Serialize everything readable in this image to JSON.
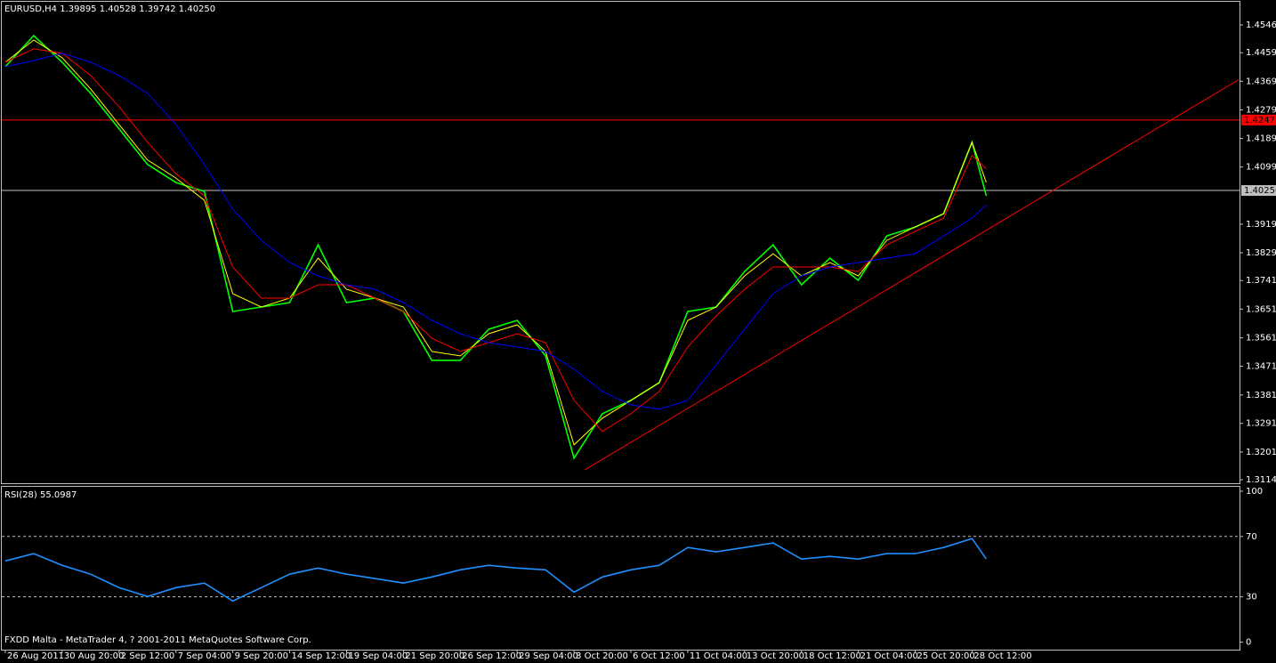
{
  "chart_data": [
    {
      "type": "line",
      "title": "EURUSD,H4  1.39895 1.40528 1.39742 1.40250",
      "x": [
        0,
        8,
        16,
        24,
        32,
        40,
        48,
        56,
        64,
        72,
        80,
        88,
        96,
        104,
        112,
        120,
        128,
        136,
        144,
        152,
        160,
        168,
        176,
        184,
        192,
        200,
        208,
        216,
        224,
        232,
        240,
        248,
        256,
        264,
        272,
        276
      ],
      "series": [
        {
          "color": "#00ff00",
          "values": [
            1.4415,
            1.4513,
            1.4429,
            1.4331,
            1.4219,
            1.4107,
            1.405,
            1.4022,
            1.3644,
            1.3658,
            1.3672,
            1.3854,
            1.3672,
            1.3686,
            1.3644,
            1.349,
            1.349,
            1.3588,
            1.3616,
            1.3504,
            1.3182,
            1.3322,
            1.3364,
            1.342,
            1.3644,
            1.3658,
            1.377,
            1.3854,
            1.3728,
            1.3812,
            1.3742,
            1.3882,
            1.391,
            1.3952,
            1.4177,
            1.4008
          ]
        },
        {
          "color": "#ffff00",
          "values": [
            1.4429,
            1.4499,
            1.4443,
            1.4345,
            1.4233,
            1.4121,
            1.4064,
            1.3994,
            1.37,
            1.3658,
            1.3686,
            1.3812,
            1.3714,
            1.3686,
            1.3658,
            1.3518,
            1.3504,
            1.3574,
            1.3602,
            1.3518,
            1.3224,
            1.3308,
            1.3364,
            1.342,
            1.3616,
            1.3658,
            1.3756,
            1.3826,
            1.3756,
            1.3798,
            1.3756,
            1.3868,
            1.391,
            1.3952,
            1.4177,
            1.405
          ]
        },
        {
          "color": "#ff0000",
          "values": [
            1.4429,
            1.4471,
            1.4457,
            1.4387,
            1.4289,
            1.4177,
            1.4078,
            1.4008,
            1.3784,
            1.3686,
            1.3686,
            1.3728,
            1.3728,
            1.3686,
            1.3644,
            1.356,
            1.3518,
            1.3546,
            1.3574,
            1.3546,
            1.3364,
            1.3266,
            1.3322,
            1.3392,
            1.3532,
            1.363,
            1.3714,
            1.3784,
            1.3784,
            1.3784,
            1.377,
            1.3854,
            1.3896,
            1.3938,
            1.4135,
            1.4093
          ]
        },
        {
          "color": "#0000ff",
          "values": [
            1.4415,
            1.4434,
            1.4457,
            1.4429,
            1.4387,
            1.4331,
            1.4233,
            1.4107,
            1.3966,
            1.3868,
            1.3798,
            1.3756,
            1.3728,
            1.3714,
            1.3672,
            1.3616,
            1.3574,
            1.3546,
            1.3532,
            1.3518,
            1.3462,
            1.3392,
            1.335,
            1.3336,
            1.3364,
            1.3476,
            1.3588,
            1.37,
            1.3756,
            1.3784,
            1.3798,
            1.3812,
            1.3826,
            1.3882,
            1.3938,
            1.398
          ]
        }
      ],
      "xlim": [
        -1,
        347.25
      ],
      "ylim": [
        1.3103,
        1.4625
      ],
      "yticks": [
        1.45465,
        {
          "value": 1.4459,
          "label": "1.44590"
        },
        {
          "value": 1.4369,
          "label": "1.43690"
        },
        {
          "value": 1.4279,
          "label": "1.42790"
        },
        {
          "value": 1.4189,
          "label": "1.41890"
        },
        {
          "value": 1.4099,
          "label": "1.40990"
        },
        {
          "value": 1.3919,
          "label": "1.39190"
        },
        {
          "value": 1.3829,
          "label": "1.38290"
        },
        1.37415,
        1.36515,
        {
          "value": 1.3561,
          "label": "1.35610"
        },
        1.34715,
        {
          "value": 1.3381,
          "label": "1.33810"
        },
        1.32915,
        1.32015,
        {
          "value": 1.3114,
          "label": "1.31140"
        }
      ],
      "hlines": [
        {
          "value": 1.4247,
          "color": "#ff0000",
          "label": "1.4247"
        },
        {
          "value": 1.4025,
          "color": "#c0c0c0",
          "label": "1.40250"
        }
      ],
      "trendline": {
        "color": "#ff0000",
        "x": [
          163,
          347
        ],
        "values": [
          1.3145,
          1.4374
        ]
      }
    },
    {
      "type": "line",
      "title": "RSI(28) 55.0987",
      "x": [
        0,
        8,
        16,
        24,
        32,
        40,
        48,
        56,
        64,
        72,
        80,
        88,
        96,
        104,
        112,
        120,
        128,
        136,
        144,
        152,
        160,
        168,
        176,
        184,
        192,
        200,
        208,
        216,
        224,
        232,
        240,
        248,
        256,
        264,
        272,
        276
      ],
      "series": [
        {
          "color": "#1e90ff",
          "values": [
            53.8,
            58.6,
            50.9,
            45.0,
            36.1,
            30.2,
            36.1,
            39.1,
            27.2,
            36.1,
            45.0,
            49.1,
            45.0,
            42.1,
            39.1,
            43.2,
            47.9,
            50.9,
            49.1,
            47.9,
            33.1,
            43.2,
            47.9,
            50.9,
            62.7,
            59.8,
            62.7,
            65.7,
            55.0,
            56.8,
            55.0,
            58.6,
            58.6,
            62.7,
            68.6,
            55.1
          ]
        }
      ],
      "xlim": [
        -1,
        347.25
      ],
      "ylim": [
        -5,
        103.5
      ],
      "yticks": [
        100,
        70,
        30,
        0
      ],
      "levels": [
        70,
        30
      ],
      "xticks": [
        {
          "value": 0,
          "label": "26 Aug 2011"
        },
        {
          "value": 16,
          "label": "30 Aug 20:00"
        },
        {
          "value": 32,
          "label": "2 Sep 12:00"
        },
        {
          "value": 48,
          "label": "7 Sep 04:00"
        },
        {
          "value": 64,
          "label": "9 Sep 20:00"
        },
        {
          "value": 80,
          "label": "14 Sep 12:00"
        },
        {
          "value": 96,
          "label": "19 Sep 04:00"
        },
        {
          "value": 112,
          "label": "21 Sep 20:00"
        },
        {
          "value": 128,
          "label": "26 Sep 12:00"
        },
        {
          "value": 144,
          "label": "29 Sep 04:00"
        },
        {
          "value": 160,
          "label": "3 Oct 20:00"
        },
        {
          "value": 176,
          "label": "6 Oct 12:00"
        },
        {
          "value": 192,
          "label": "11 Oct 04:00"
        },
        {
          "value": 208,
          "label": "13 Oct 20:00"
        },
        {
          "value": 224,
          "label": "18 Oct 12:00"
        },
        {
          "value": 240,
          "label": "21 Oct 04:00"
        },
        {
          "value": 256,
          "label": "25 Oct 20:00"
        },
        {
          "value": 272,
          "label": "28 Oct 12:00"
        }
      ]
    }
  ],
  "footer": "FXDD Malta - MetaTrader 4, ? 2001-2011 MetaQuotes Software Corp."
}
